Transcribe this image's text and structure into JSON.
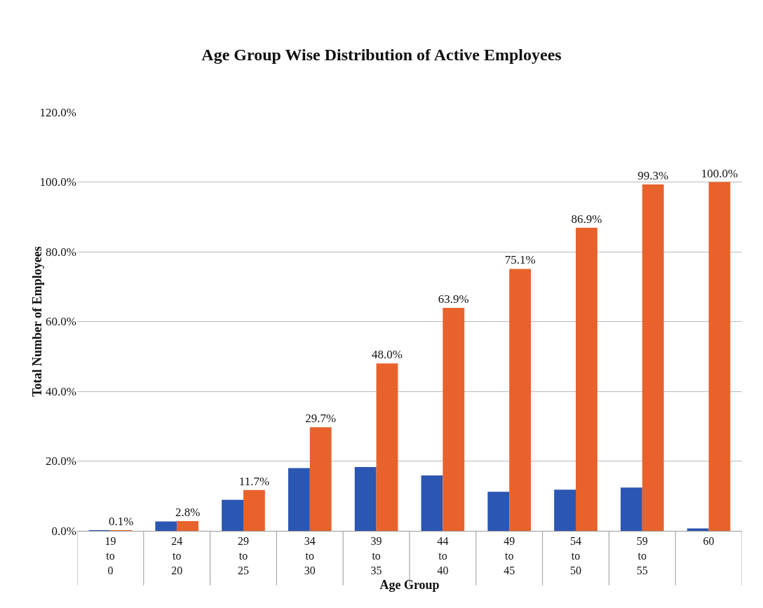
{
  "chart_data": {
    "type": "bar",
    "title": "Age Group Wise Distribution of Active Employees",
    "xlabel": "Age Group",
    "ylabel": "Total Number of Employees",
    "categories": [
      "19\nto\n0",
      "24\nto\n20",
      "29\nto\n25",
      "34\nto\n30",
      "39\nto\n35",
      "44\nto\n40",
      "49\nto\n45",
      "54\nto\n50",
      "59\nto\n55",
      "60"
    ],
    "series": [
      {
        "color": "#2b56b2",
        "values": [
          0.1,
          2.7,
          8.9,
          18.0,
          18.3,
          15.9,
          11.2,
          11.8,
          12.4,
          0.7
        ]
      },
      {
        "color": "#e8622c",
        "values": [
          0.1,
          2.8,
          11.7,
          29.7,
          48.0,
          63.9,
          75.1,
          86.9,
          99.3,
          100.0
        ],
        "value_labels": [
          "0.1%",
          "2.8%",
          "11.7%",
          "29.7%",
          "48.0%",
          "63.9%",
          "75.1%",
          "86.9%",
          "99.3%",
          "100.0%"
        ]
      }
    ],
    "ylim": [
      0,
      120
    ],
    "yticks": [
      {
        "value": 0,
        "label": "0.0%"
      },
      {
        "value": 20,
        "label": "20.0%"
      },
      {
        "value": 40,
        "label": "40.0%"
      },
      {
        "value": 60,
        "label": "60.0%"
      },
      {
        "value": 80,
        "label": "80.0%"
      },
      {
        "value": 100,
        "label": "100.0%"
      },
      {
        "value": 120,
        "label": "120.0%"
      }
    ],
    "grid": "y"
  }
}
